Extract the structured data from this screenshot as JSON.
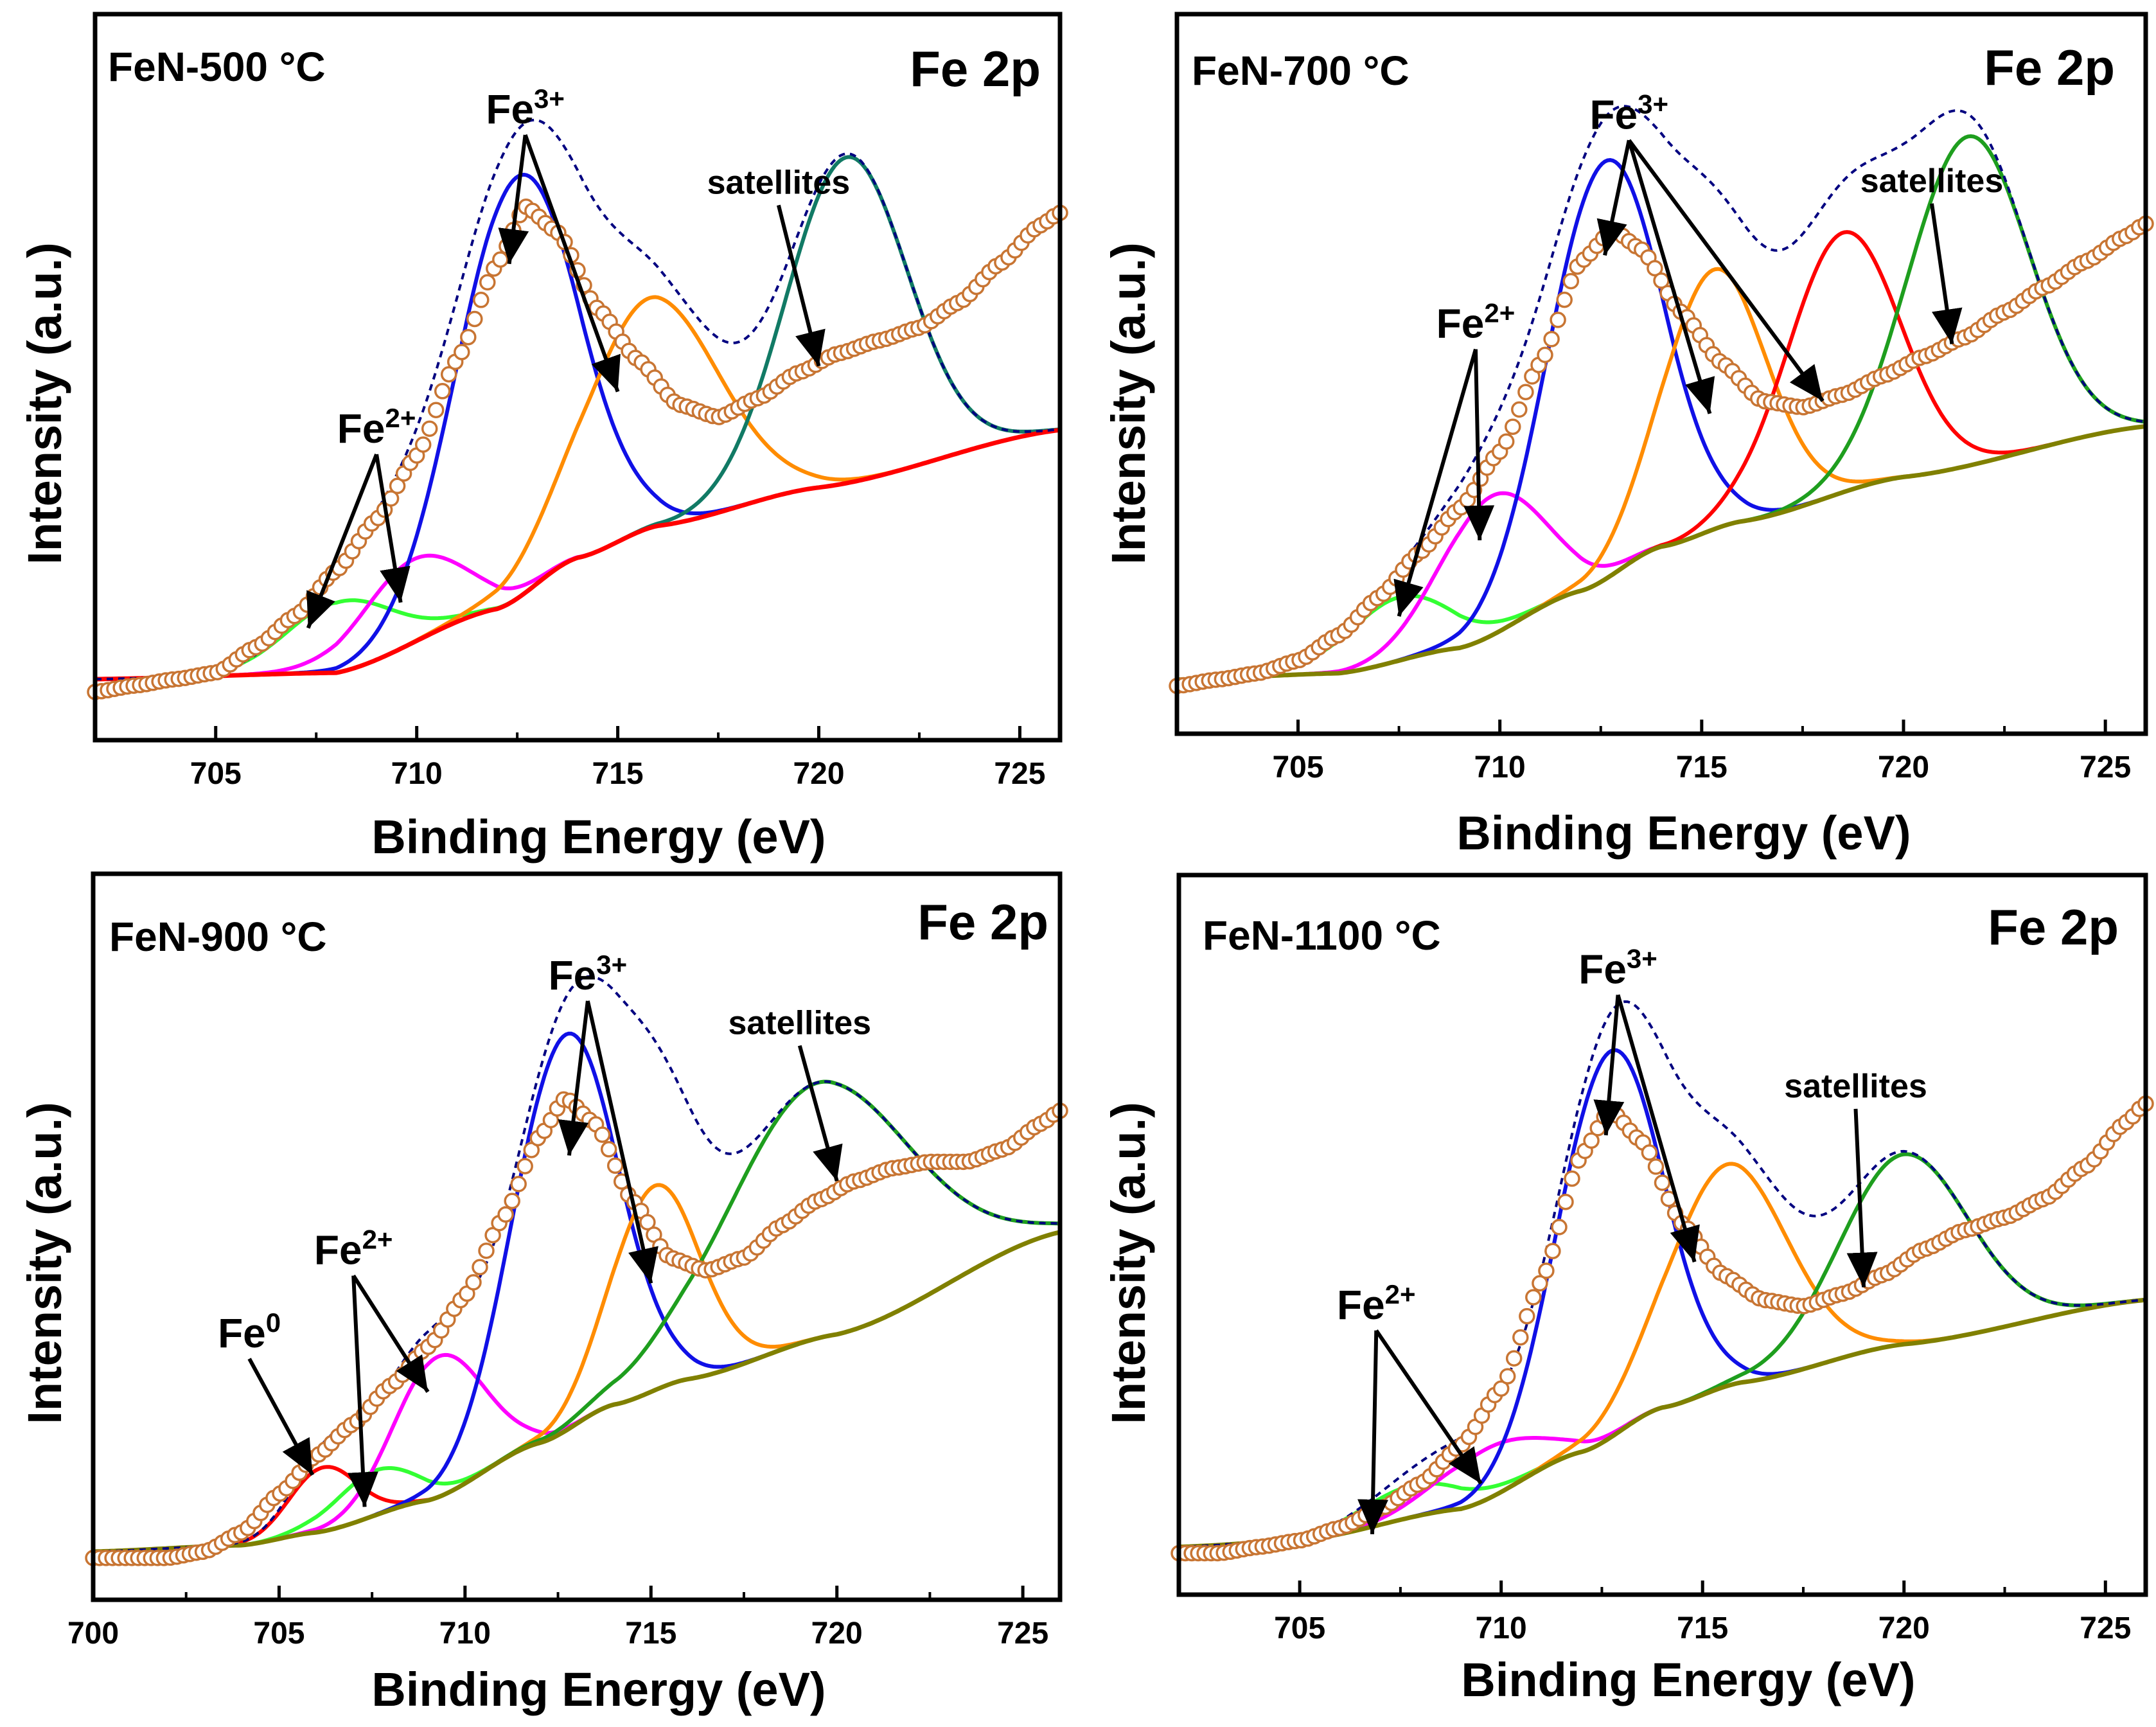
{
  "chart_data": [
    {
      "type": "line",
      "sample": "FeN-500 °C",
      "region": "Fe 2p",
      "xlabel": "Binding Energy (eV)",
      "ylabel": "Intensity (a.u.)",
      "xlim": [
        702,
        726
      ],
      "ylim": [
        0,
        1
      ],
      "xticks": [
        705,
        710,
        715,
        720,
        725
      ],
      "background": {
        "color": "#ff0000",
        "points": [
          [
            702,
            0.05
          ],
          [
            708,
            0.06
          ],
          [
            712,
            0.16
          ],
          [
            714,
            0.24
          ],
          [
            716,
            0.29
          ],
          [
            720,
            0.35
          ],
          [
            726,
            0.44
          ]
        ]
      },
      "peaks": [
        {
          "name": "Fe2+",
          "center": 708.1,
          "height": 0.11,
          "width": 1.3,
          "color": "#33ff33"
        },
        {
          "name": "Fe2+",
          "center": 709.9,
          "height": 0.13,
          "width": 1.3,
          "color": "#ff00ff"
        },
        {
          "name": "Fe3+",
          "center": 712.5,
          "height": 0.66,
          "width": 1.5,
          "color": "#1010e6"
        },
        {
          "name": "Fe3+",
          "center": 715.8,
          "height": 0.36,
          "width": 1.7,
          "color": "#ff8c00"
        },
        {
          "name": "satellite",
          "center": 720.7,
          "height": 0.51,
          "width": 1.5,
          "color": "#117a65"
        }
      ],
      "envelope_color": "#000080",
      "data_points": [
        [
          702,
          0.03
        ],
        [
          703,
          0.04
        ],
        [
          704,
          0.05
        ],
        [
          705,
          0.06
        ],
        [
          706,
          0.1
        ],
        [
          707,
          0.15
        ],
        [
          708,
          0.22
        ],
        [
          709,
          0.3
        ],
        [
          710,
          0.4
        ],
        [
          711,
          0.55
        ],
        [
          712,
          0.7
        ],
        [
          712.7,
          0.79
        ],
        [
          713.5,
          0.75
        ],
        [
          714.5,
          0.63
        ],
        [
          715.5,
          0.55
        ],
        [
          716.5,
          0.48
        ],
        [
          717.5,
          0.46
        ],
        [
          718.5,
          0.49
        ],
        [
          719.5,
          0.53
        ],
        [
          720.5,
          0.56
        ],
        [
          721.5,
          0.58
        ],
        [
          722.5,
          0.6
        ],
        [
          723.5,
          0.64
        ],
        [
          724.5,
          0.7
        ],
        [
          725.5,
          0.76
        ],
        [
          726,
          0.78
        ]
      ],
      "annotations": [
        {
          "text": "Fe",
          "sup": "3+",
          "label_x": 712.7,
          "label_y": 0.92,
          "arrows": [
            [
              712.3,
              0.7
            ],
            [
              715.0,
              0.5
            ]
          ]
        },
        {
          "text": "satellites",
          "sup": "",
          "label_x": 719.0,
          "label_y": 0.81,
          "arrows": [
            [
              720.0,
              0.54
            ]
          ]
        },
        {
          "text": "Fe",
          "sup": "2+",
          "label_x": 709.0,
          "label_y": 0.42,
          "arrows": [
            [
              707.3,
              0.13
            ],
            [
              709.6,
              0.17
            ]
          ]
        }
      ]
    },
    {
      "type": "line",
      "sample": "FeN-700 °C",
      "region": "Fe 2p",
      "xlabel": "Binding Energy (eV)",
      "ylabel": "Intensity (a.u.)",
      "xlim": [
        702,
        726
      ],
      "ylim": [
        0,
        1
      ],
      "xticks": [
        705,
        710,
        715,
        720,
        725
      ],
      "background": {
        "color": "#808000",
        "points": [
          [
            702,
            0.04
          ],
          [
            706,
            0.05
          ],
          [
            709,
            0.09
          ],
          [
            712,
            0.18
          ],
          [
            714,
            0.25
          ],
          [
            716,
            0.29
          ],
          [
            720,
            0.36
          ],
          [
            726,
            0.44
          ]
        ]
      },
      "peaks": [
        {
          "name": "Fe2+",
          "center": 707.5,
          "height": 0.1,
          "width": 1.3,
          "color": "#33ff33"
        },
        {
          "name": "Fe2+",
          "center": 709.8,
          "height": 0.22,
          "width": 1.3,
          "color": "#ff00ff"
        },
        {
          "name": "Fe3+",
          "center": 712.6,
          "height": 0.66,
          "width": 1.4,
          "color": "#1010e6"
        },
        {
          "name": "Fe3+",
          "center": 715.3,
          "height": 0.41,
          "width": 1.3,
          "color": "#ff8c00"
        },
        {
          "name": "Fe3+",
          "center": 718.5,
          "height": 0.41,
          "width": 1.4,
          "color": "#ff0000"
        },
        {
          "name": "satellite",
          "center": 721.6,
          "height": 0.52,
          "width": 1.5,
          "color": "#1e9e1e"
        }
      ],
      "envelope_color": "#000080",
      "data_points": [
        [
          702,
          0.03
        ],
        [
          703,
          0.04
        ],
        [
          704,
          0.05
        ],
        [
          705,
          0.07
        ],
        [
          706,
          0.11
        ],
        [
          707,
          0.17
        ],
        [
          708,
          0.24
        ],
        [
          709,
          0.31
        ],
        [
          710,
          0.4
        ],
        [
          711,
          0.54
        ],
        [
          712,
          0.7
        ],
        [
          712.8,
          0.75
        ],
        [
          713.5,
          0.72
        ],
        [
          714.5,
          0.62
        ],
        [
          715.5,
          0.54
        ],
        [
          716.5,
          0.48
        ],
        [
          717.5,
          0.47
        ],
        [
          718.5,
          0.49
        ],
        [
          719.5,
          0.52
        ],
        [
          720.5,
          0.55
        ],
        [
          721.5,
          0.58
        ],
        [
          722.5,
          0.62
        ],
        [
          723.5,
          0.66
        ],
        [
          724.5,
          0.7
        ],
        [
          725.5,
          0.74
        ],
        [
          726,
          0.76
        ]
      ],
      "annotations": [
        {
          "text": "Fe",
          "sup": "3+",
          "label_x": 713.2,
          "label_y": 0.91,
          "arrows": [
            [
              712.6,
              0.71
            ],
            [
              715.2,
              0.46
            ],
            [
              718.0,
              0.48
            ]
          ]
        },
        {
          "text": "satellites",
          "sup": "",
          "label_x": 720.7,
          "label_y": 0.81,
          "arrows": [
            [
              721.2,
              0.57
            ]
          ]
        },
        {
          "text": "Fe",
          "sup": "2+",
          "label_x": 709.4,
          "label_y": 0.58,
          "arrows": [
            [
              707.5,
              0.14
            ],
            [
              709.5,
              0.26
            ]
          ]
        }
      ]
    },
    {
      "type": "line",
      "sample": "FeN-900 °C",
      "region": "Fe 2p",
      "xlabel": "Binding Energy (eV)",
      "ylabel": "Intensity (a.u.)",
      "xlim": [
        700,
        726
      ],
      "ylim": [
        0,
        1
      ],
      "xticks": [
        700,
        705,
        710,
        715,
        720,
        725
      ],
      "background": {
        "color": "#808000",
        "points": [
          [
            700,
            0.03
          ],
          [
            704,
            0.04
          ],
          [
            706,
            0.06
          ],
          [
            709,
            0.11
          ],
          [
            712,
            0.2
          ],
          [
            714,
            0.26
          ],
          [
            716,
            0.3
          ],
          [
            720,
            0.37
          ],
          [
            726,
            0.53
          ]
        ]
      },
      "peaks": [
        {
          "name": "Fe0",
          "center": 706.2,
          "height": 0.1,
          "width": 0.9,
          "color": "#ff0000"
        },
        {
          "name": "Fe2+",
          "center": 707.6,
          "height": 0.07,
          "width": 1.1,
          "color": "#33ff33"
        },
        {
          "name": "Fe2+",
          "center": 709.3,
          "height": 0.22,
          "width": 1.2,
          "color": "#ff00ff"
        },
        {
          "name": "Fe3+",
          "center": 712.7,
          "height": 0.62,
          "width": 1.4,
          "color": "#1010e6"
        },
        {
          "name": "Fe3+",
          "center": 715.1,
          "height": 0.32,
          "width": 1.2,
          "color": "#ff8c00"
        },
        {
          "name": "satellite",
          "center": 719.5,
          "height": 0.4,
          "width": 2.5,
          "color": "#1e9e1e"
        }
      ],
      "envelope_color": "#000080",
      "data_points": [
        [
          700,
          0.02
        ],
        [
          701,
          0.02
        ],
        [
          702,
          0.02
        ],
        [
          703,
          0.03
        ],
        [
          704,
          0.06
        ],
        [
          705,
          0.12
        ],
        [
          706,
          0.18
        ],
        [
          707,
          0.23
        ],
        [
          708,
          0.29
        ],
        [
          709,
          0.35
        ],
        [
          710,
          0.43
        ],
        [
          711,
          0.55
        ],
        [
          712,
          0.68
        ],
        [
          712.7,
          0.74
        ],
        [
          713.5,
          0.7
        ],
        [
          714.5,
          0.58
        ],
        [
          715.5,
          0.49
        ],
        [
          716.5,
          0.47
        ],
        [
          717.5,
          0.49
        ],
        [
          718.5,
          0.54
        ],
        [
          719.5,
          0.58
        ],
        [
          720.5,
          0.61
        ],
        [
          721.5,
          0.63
        ],
        [
          722.5,
          0.64
        ],
        [
          723.5,
          0.64
        ],
        [
          724.5,
          0.66
        ],
        [
          725.5,
          0.7
        ],
        [
          726,
          0.72
        ]
      ],
      "annotations": [
        {
          "text": "Fe",
          "sup": "3+",
          "label_x": 713.3,
          "label_y": 0.91,
          "arrows": [
            [
              712.8,
              0.65
            ],
            [
              715.0,
              0.45
            ]
          ]
        },
        {
          "text": "satellites",
          "sup": "",
          "label_x": 719.0,
          "label_y": 0.84,
          "arrows": [
            [
              720.0,
              0.61
            ]
          ]
        },
        {
          "text": "Fe",
          "sup": "2+",
          "label_x": 707.0,
          "label_y": 0.48,
          "arrows": [
            [
              707.3,
              0.1
            ],
            [
              709.0,
              0.28
            ]
          ]
        },
        {
          "text": "Fe",
          "sup": "0",
          "label_x": 704.2,
          "label_y": 0.35,
          "arrows": [
            [
              705.9,
              0.15
            ]
          ]
        }
      ]
    },
    {
      "type": "line",
      "sample": "FeN-1100 °C",
      "region": "Fe 2p",
      "xlabel": "Binding Energy (eV)",
      "ylabel": "Intensity (a.u.)",
      "xlim": [
        702,
        726
      ],
      "ylim": [
        0,
        1
      ],
      "xticks": [
        705,
        710,
        715,
        720,
        725
      ],
      "background": {
        "color": "#808000",
        "points": [
          [
            702,
            0.03
          ],
          [
            705,
            0.04
          ],
          [
            709,
            0.09
          ],
          [
            712,
            0.18
          ],
          [
            714,
            0.25
          ],
          [
            716,
            0.29
          ],
          [
            720,
            0.35
          ],
          [
            726,
            0.42
          ]
        ]
      },
      "peaks": [
        {
          "name": "Fe2+",
          "center": 707.8,
          "height": 0.05,
          "width": 1.3,
          "color": "#33ff33"
        },
        {
          "name": "Fe2+",
          "center": 709.7,
          "height": 0.08,
          "width": 1.3,
          "color": "#ff00ff"
        },
        {
          "name": "Fe3+",
          "center": 712.7,
          "height": 0.61,
          "width": 1.3,
          "color": "#1010e6"
        },
        {
          "name": "Fe3+",
          "center": 715.6,
          "height": 0.35,
          "width": 1.5,
          "color": "#ff8c00"
        },
        {
          "name": "satellite",
          "center": 720.0,
          "height": 0.3,
          "width": 1.6,
          "color": "#1e9e1e"
        }
      ],
      "envelope_color": "#000080",
      "data_points": [
        [
          702,
          0.02
        ],
        [
          703,
          0.02
        ],
        [
          704,
          0.03
        ],
        [
          705,
          0.04
        ],
        [
          706,
          0.06
        ],
        [
          707,
          0.09
        ],
        [
          708,
          0.13
        ],
        [
          709,
          0.19
        ],
        [
          710,
          0.28
        ],
        [
          711,
          0.45
        ],
        [
          712,
          0.65
        ],
        [
          712.7,
          0.72
        ],
        [
          713.5,
          0.67
        ],
        [
          714.5,
          0.54
        ],
        [
          715.5,
          0.46
        ],
        [
          716.5,
          0.42
        ],
        [
          717.5,
          0.41
        ],
        [
          718.5,
          0.43
        ],
        [
          719.5,
          0.46
        ],
        [
          720.5,
          0.5
        ],
        [
          721.5,
          0.53
        ],
        [
          722.5,
          0.55
        ],
        [
          723.5,
          0.58
        ],
        [
          724.5,
          0.63
        ],
        [
          725.5,
          0.7
        ],
        [
          726,
          0.73
        ]
      ],
      "annotations": [
        {
          "text": "Fe",
          "sup": "3+",
          "label_x": 712.9,
          "label_y": 0.92,
          "arrows": [
            [
              712.6,
              0.68
            ],
            [
              714.8,
              0.48
            ]
          ]
        },
        {
          "text": "satellites",
          "sup": "",
          "label_x": 718.8,
          "label_y": 0.74,
          "arrows": [
            [
              719.0,
              0.44
            ]
          ]
        },
        {
          "text": "Fe",
          "sup": "2+",
          "label_x": 706.9,
          "label_y": 0.39,
          "arrows": [
            [
              706.8,
              0.05
            ],
            [
              709.5,
              0.13
            ]
          ]
        }
      ]
    }
  ]
}
